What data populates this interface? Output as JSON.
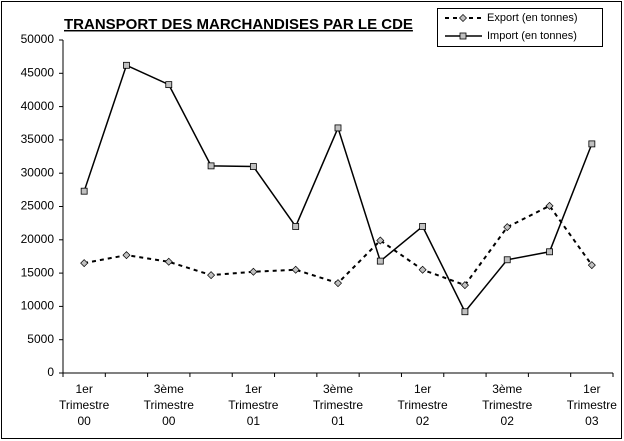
{
  "chart_data": {
    "type": "line",
    "title": "TRANSPORT DES MARCHANDISES PAR LE CDE",
    "categories": [
      "1er Trimestre 00",
      null,
      "3ème Trimestre 00",
      null,
      "1er Trimestre 01",
      null,
      "3ème Trimestre 01",
      null,
      "1er Trimestre 02",
      null,
      "3ème Trimestre 02",
      null,
      "1er Trimestre 03"
    ],
    "series": [
      {
        "name": "Export (en tonnes)",
        "color": "#000000",
        "dash": true,
        "marker": "diamond",
        "values": [
          16500,
          17700,
          16700,
          14700,
          15200,
          15500,
          13500,
          19900,
          15500,
          13200,
          21900,
          25100,
          16200
        ]
      },
      {
        "name": "Import (en tonnes)",
        "color": "#000000",
        "dash": false,
        "marker": "square",
        "values": [
          27300,
          46200,
          43300,
          31100,
          31000,
          22000,
          36800,
          16800,
          22000,
          9200,
          17000,
          18200,
          34400
        ]
      }
    ],
    "ylim": [
      0,
      50000
    ],
    "yticks": [
      0,
      5000,
      10000,
      15000,
      20000,
      25000,
      30000,
      35000,
      40000,
      45000,
      50000
    ],
    "legend": "upper right"
  }
}
